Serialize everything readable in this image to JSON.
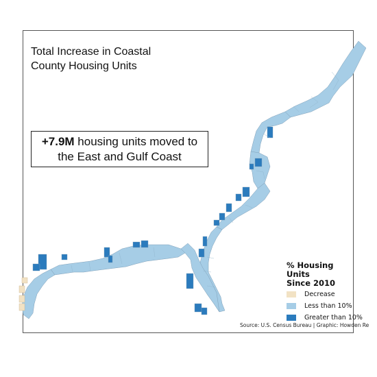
{
  "title": {
    "line1": "Total Increase in Coastal",
    "line2": "County Housing Units"
  },
  "callout": {
    "highlight": "+7.9M",
    "rest_line1": " housing units moved to",
    "line2": "the East and Gulf Coast"
  },
  "legend": {
    "title_line1": "% Housing Units",
    "title_line2": "Since 2010",
    "items": [
      {
        "label": "Decrease",
        "color": "#f2e2c4"
      },
      {
        "label": "Less than 10%",
        "color": "#a6cde6"
      },
      {
        "label": "Greater than 10%",
        "color": "#2b7bbd"
      }
    ]
  },
  "source": {
    "text": "Source: U.S. Census Bureau   |   Graphic: Howden Re"
  },
  "colors": {
    "decrease": "#f2e2c4",
    "less_than_10": "#a6cde6",
    "greater_than_10": "#2b7bbd",
    "county_border": "#7f9fb8"
  }
}
